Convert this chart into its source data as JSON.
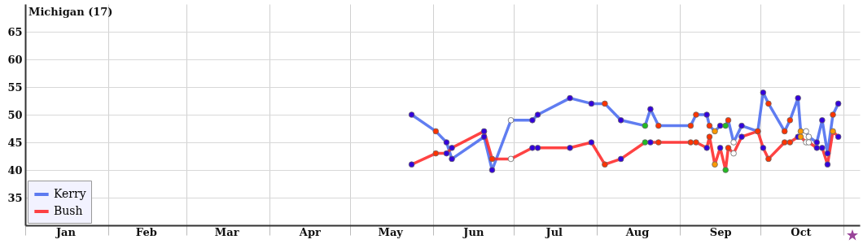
{
  "chart_data": {
    "type": "line",
    "title": "Michigan (17)",
    "x": [
      "--05-24",
      "--06-02",
      "--06-06",
      "--06-08",
      "--06-20",
      "--06-23",
      "--06-30",
      "--07-08",
      "--07-10",
      "--07-22",
      "--07-30",
      "--08-04",
      "--08-10",
      "--08-19",
      "--08-21",
      "--08-24",
      "--09-05",
      "--09-07",
      "--09-11",
      "--09-12",
      "--09-14",
      "--09-16",
      "--09-18",
      "--09-19",
      "--09-21",
      "--09-24",
      "--09-30",
      "--10-02",
      "--10-04",
      "--10-10",
      "--10-12",
      "--10-15",
      "--10-16",
      "--10-18",
      "--10-19",
      "--10-22",
      "--10-24",
      "--10-26",
      "--10-28",
      "--10-30"
    ],
    "series": [
      {
        "name": "Kerry",
        "color": "#4466ee",
        "values": [
          50,
          47,
          45,
          42,
          46,
          40,
          49,
          49,
          50,
          53,
          52,
          52,
          49,
          48,
          51,
          48,
          48,
          50,
          50,
          48,
          47,
          48,
          48,
          49,
          45,
          48,
          47,
          54,
          52,
          47,
          49,
          53,
          47,
          47,
          46,
          45,
          49,
          43,
          50,
          52
        ],
        "colors": [
          "#3300dd",
          "#ff3300",
          "#3300dd",
          "#3300dd",
          "#3300dd",
          "#3300dd",
          "#ffffff",
          "#3300dd",
          "#3300dd",
          "#3300dd",
          "#3300dd",
          "#ff3300",
          "#3300dd",
          "#22bb22",
          "#3300dd",
          "#ff3300",
          "#ff3300",
          "#ff3300",
          "#3300dd",
          "#ff3300",
          "#ff9900",
          "#3300dd",
          "#22bb22",
          "#ff3300",
          "#ffffff",
          "#3300dd",
          "#ff3300",
          "#3300dd",
          "#ff3300",
          "#ff3300",
          "#ff3300",
          "#3300dd",
          "#ff9900",
          "#ffffff",
          "#ffffff",
          "#3300dd",
          "#3300dd",
          "#3300dd",
          "#ff3300",
          "#3300dd"
        ]
      },
      {
        "name": "Bush",
        "color": "#ff2222",
        "values": [
          41,
          43,
          43,
          44,
          47,
          42,
          42,
          44,
          44,
          44,
          45,
          41,
          42,
          45,
          45,
          45,
          45,
          45,
          44,
          46,
          41,
          44,
          40,
          44,
          43,
          46,
          47,
          44,
          42,
          45,
          45,
          46,
          46,
          45,
          45,
          44,
          44,
          41,
          47,
          46
        ],
        "colors": [
          "#3300dd",
          "#ff3300",
          "#3300dd",
          "#3300dd",
          "#3300dd",
          "#ff3300",
          "#ffffff",
          "#3300dd",
          "#3300dd",
          "#3300dd",
          "#3300dd",
          "#ff3300",
          "#3300dd",
          "#22bb22",
          "#3300dd",
          "#ff3300",
          "#ff3300",
          "#ff3300",
          "#3300dd",
          "#ff3300",
          "#ff9900",
          "#3300dd",
          "#22bb22",
          "#ff3300",
          "#ffffff",
          "#3300dd",
          "#ff3300",
          "#3300dd",
          "#ff3300",
          "#ff3300",
          "#ff3300",
          "#3300dd",
          "#ff9900",
          "#ffffff",
          "#ffffff",
          "#3300dd",
          "#3300dd",
          "#3300dd",
          "#ff9900",
          "#3300dd"
        ]
      }
    ],
    "xlim": [
      "--01-01",
      "--11-07"
    ],
    "xticks": [
      {
        "value": "--01-01",
        "label": null
      },
      {
        "value": "--01-16",
        "label": "Jan"
      },
      {
        "value": "--02-01",
        "label": null
      },
      {
        "value": "--02-15",
        "label": "Feb"
      },
      {
        "value": "--03-01",
        "label": null
      },
      {
        "value": "--03-16",
        "label": "Mar"
      },
      {
        "value": "--04-01",
        "label": null
      },
      {
        "value": "--04-16",
        "label": "Apr"
      },
      {
        "value": "--05-01",
        "label": null
      },
      {
        "value": "--05-16",
        "label": "May"
      },
      {
        "value": "--06-01",
        "label": null
      },
      {
        "value": "--06-16",
        "label": "Jun"
      },
      {
        "value": "--07-01",
        "label": null
      },
      {
        "value": "--07-16",
        "label": "Jul"
      },
      {
        "value": "--08-01",
        "label": null
      },
      {
        "value": "--08-16",
        "label": "Aug"
      },
      {
        "value": "--09-01",
        "label": null
      },
      {
        "value": "--09-16",
        "label": "Sep"
      },
      {
        "value": "--10-01",
        "label": null
      },
      {
        "value": "--10-16",
        "label": "Oct"
      },
      {
        "value": "--11-01",
        "label": null
      }
    ],
    "ylim": [
      30,
      70
    ],
    "yticks": [
      35,
      40,
      45,
      50,
      55,
      60,
      65
    ],
    "grid": true,
    "legend": "bottom left",
    "marker": "circle",
    "line_style": "solid"
  }
}
